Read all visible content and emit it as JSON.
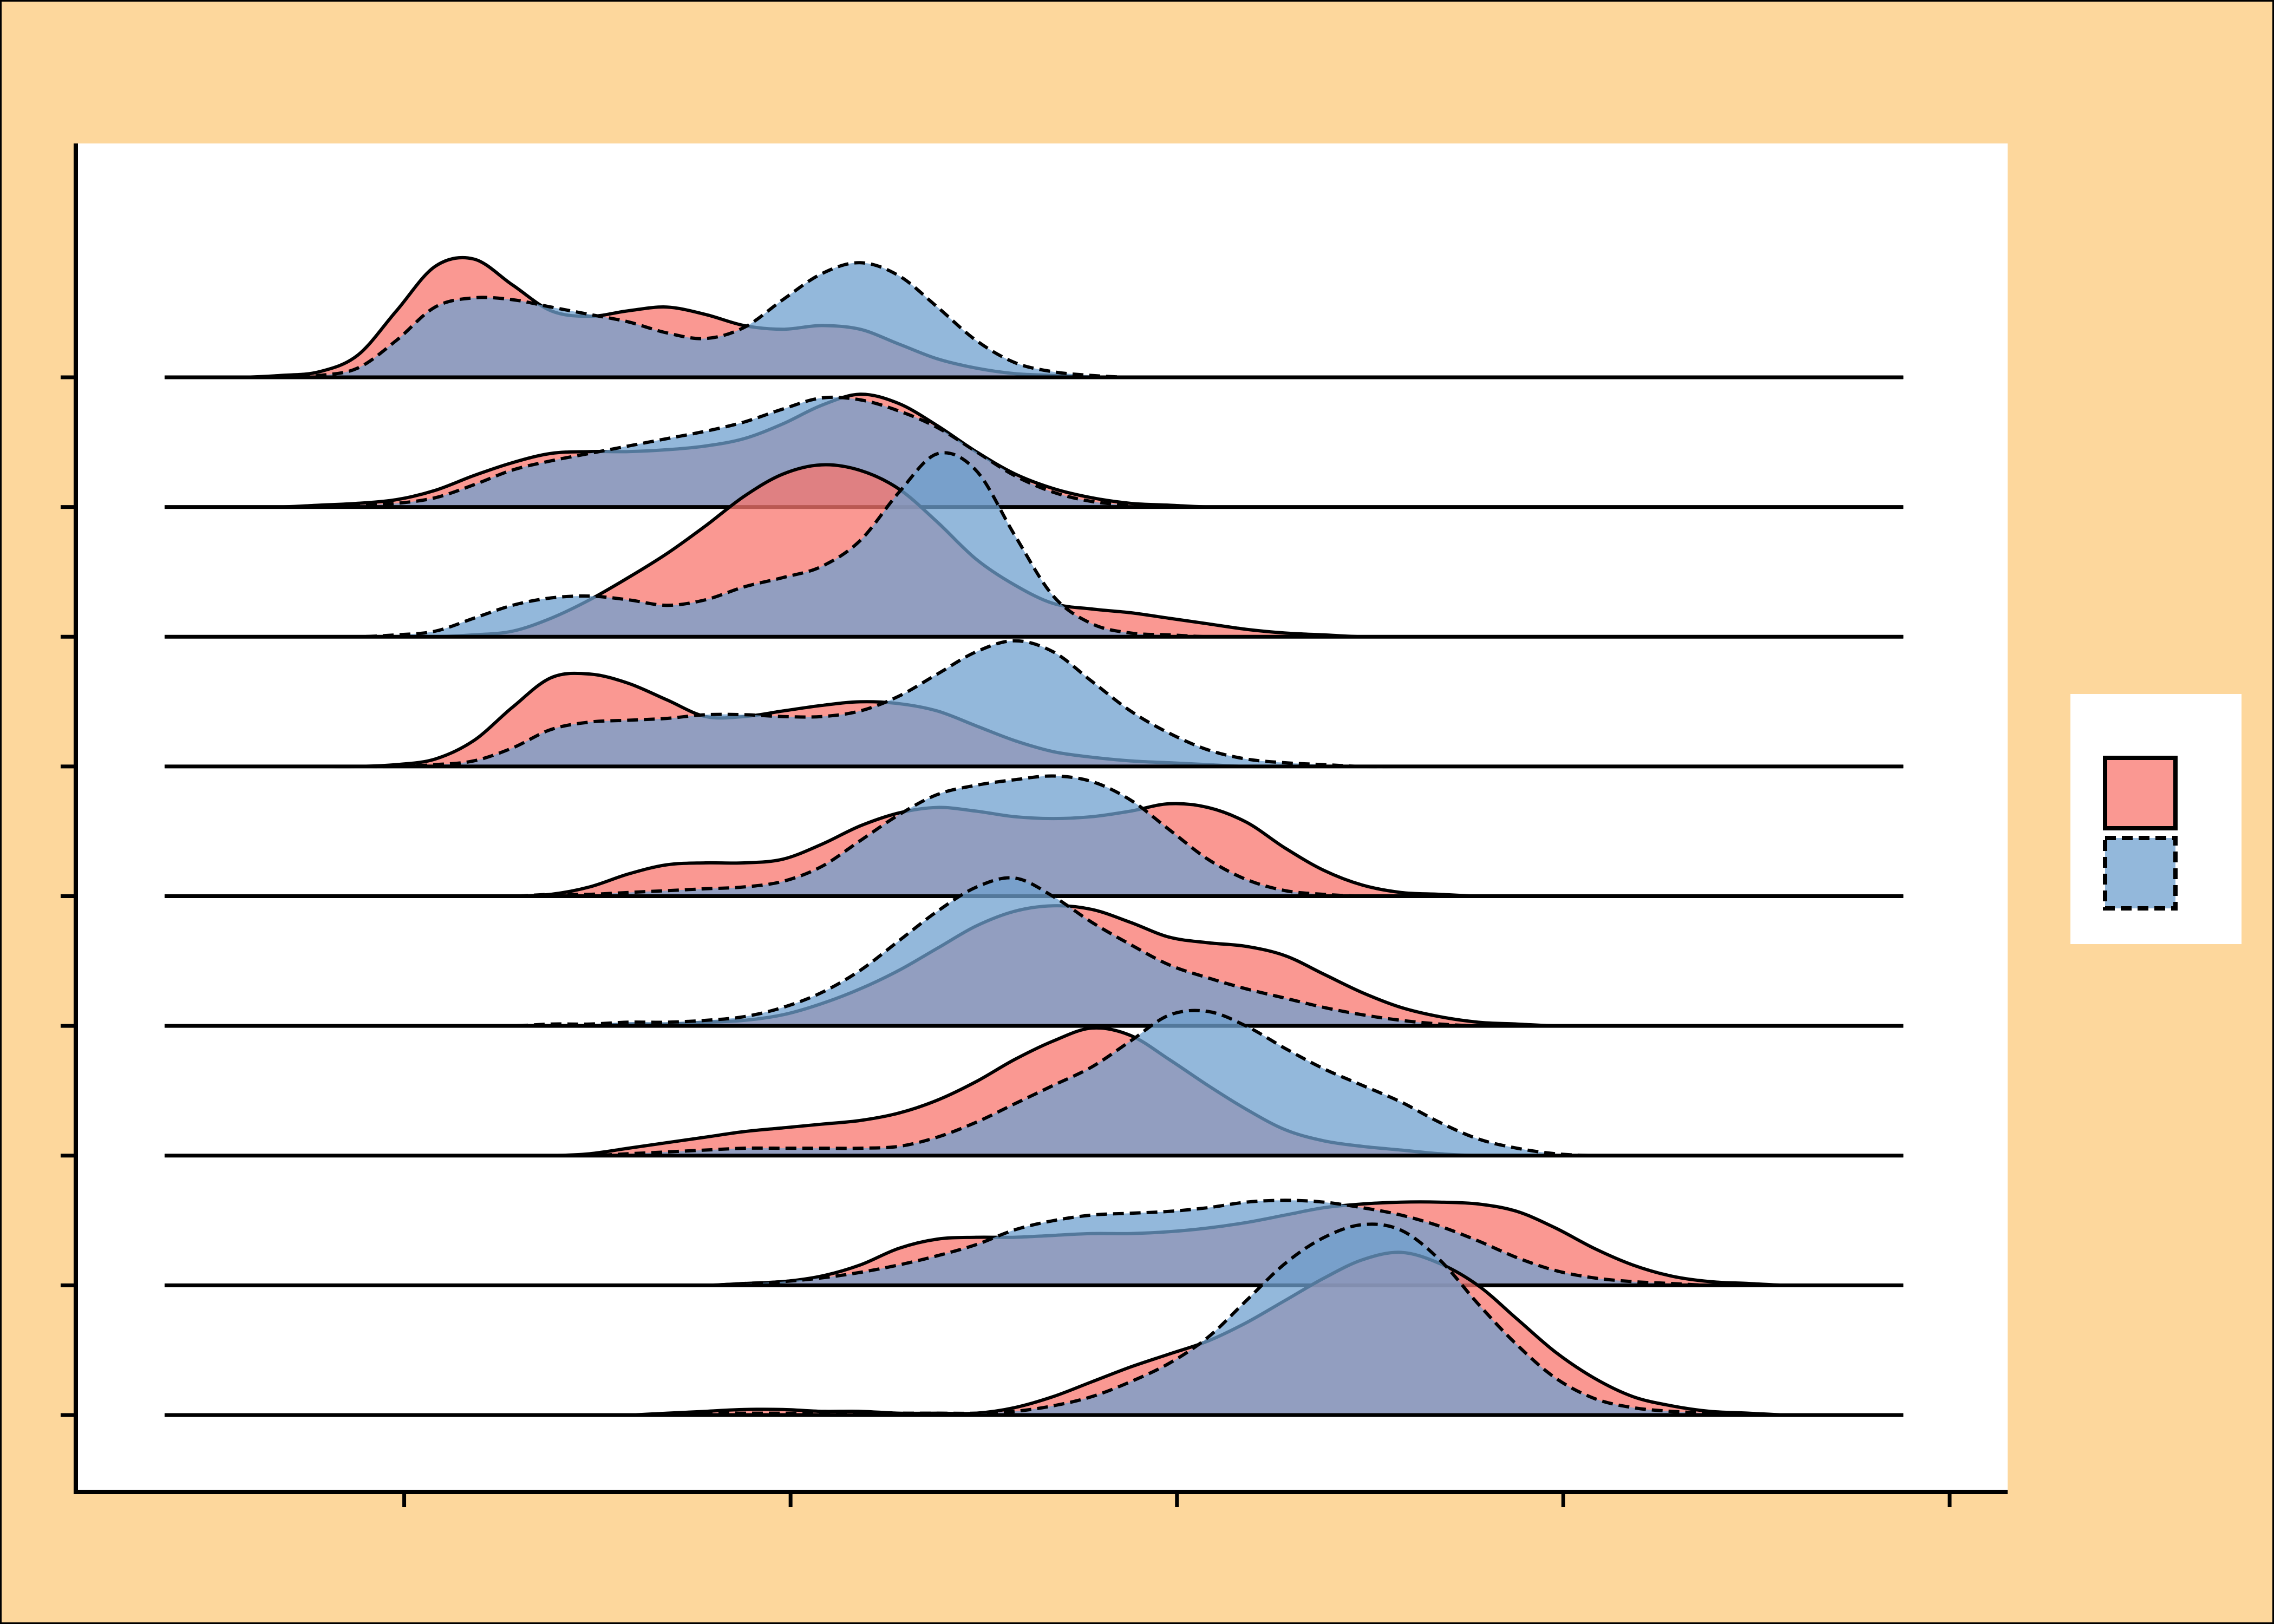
{
  "colors": {
    "page_background": "#fdd79c",
    "panel_background": "#ffffff",
    "series_a_fill": "#f8766d",
    "series_b_fill": "#6fa0cf",
    "line": "#000000"
  },
  "chart_data": {
    "type": "ridgeline",
    "title": "",
    "xlabel": "",
    "ylabel": "",
    "xlim": [
      -0.25,
      4.75
    ],
    "x_ticks": [
      0.6,
      1.6,
      2.6,
      3.6,
      4.6
    ],
    "x_tick_labels": [
      "",
      "",
      "",
      "",
      ""
    ],
    "y_tick_labels": [
      "",
      "",
      "",
      "",
      "",
      "",
      "",
      "",
      ""
    ],
    "scale": 0.57,
    "fill_alpha": 0.75,
    "legend": {
      "position": "right",
      "title": "",
      "entries": [
        {
          "name": "",
          "fill": "series_a",
          "line": "solid"
        },
        {
          "name": "",
          "fill": "series_b",
          "line": "dashed"
        }
      ]
    },
    "x": [
      -0.02,
      0.08,
      0.18,
      0.28,
      0.38,
      0.48,
      0.58,
      0.68,
      0.78,
      0.88,
      0.98,
      1.08,
      1.18,
      1.28,
      1.38,
      1.48,
      1.58,
      1.68,
      1.78,
      1.88,
      1.98,
      2.08,
      2.18,
      2.28,
      2.38,
      2.48,
      2.58,
      2.68,
      2.78,
      2.88,
      2.98,
      3.08,
      3.18,
      3.28,
      3.38,
      3.48,
      3.58,
      3.68,
      3.78,
      3.88,
      3.98,
      4.08,
      4.18,
      4.28,
      4.38,
      4.48
    ],
    "ridges": [
      {
        "label": "",
        "series": [
          {
            "name": "series_a",
            "line": "solid",
            "values": [
              0,
              0,
              0,
              0,
              0,
              0,
              0,
              0,
              0,
              0,
              0,
              0,
              0,
              0.01,
              0.02,
              0.03,
              0.03,
              0.02,
              0.02,
              0.01,
              0.01,
              0.01,
              0.04,
              0.1,
              0.18,
              0.26,
              0.33,
              0.4,
              0.5,
              0.62,
              0.74,
              0.84,
              0.88,
              0.82,
              0.7,
              0.52,
              0.34,
              0.2,
              0.1,
              0.05,
              0.02,
              0.01,
              0,
              0,
              0,
              0
            ]
          },
          {
            "name": "series_b",
            "line": "dashed",
            "values": [
              0,
              0,
              0,
              0,
              0,
              0,
              0,
              0,
              0,
              0,
              0,
              0,
              0,
              0,
              0.01,
              0.01,
              0.01,
              0.01,
              0.01,
              0.01,
              0.01,
              0.01,
              0.02,
              0.05,
              0.1,
              0.18,
              0.28,
              0.42,
              0.62,
              0.82,
              0.96,
              1.03,
              1.0,
              0.84,
              0.6,
              0.38,
              0.2,
              0.09,
              0.04,
              0.02,
              0.01,
              0,
              0,
              0,
              0,
              0
            ]
          }
        ]
      },
      {
        "label": "",
        "series": [
          {
            "name": "series_a",
            "line": "solid",
            "values": [
              0,
              0,
              0,
              0,
              0,
              0,
              0,
              0,
              0,
              0,
              0,
              0,
              0,
              0,
              0,
              0.01,
              0.02,
              0.05,
              0.11,
              0.2,
              0.25,
              0.26,
              0.26,
              0.27,
              0.28,
              0.28,
              0.29,
              0.31,
              0.34,
              0.38,
              0.42,
              0.44,
              0.45,
              0.45,
              0.44,
              0.4,
              0.31,
              0.2,
              0.11,
              0.05,
              0.02,
              0.01,
              0,
              0,
              0,
              0
            ]
          },
          {
            "name": "series_b",
            "line": "dashed",
            "values": [
              0,
              0,
              0,
              0,
              0,
              0,
              0,
              0,
              0,
              0,
              0,
              0,
              0,
              0,
              0,
              0.01,
              0.02,
              0.04,
              0.07,
              0.11,
              0.16,
              0.22,
              0.3,
              0.35,
              0.38,
              0.39,
              0.4,
              0.42,
              0.45,
              0.46,
              0.45,
              0.42,
              0.38,
              0.32,
              0.24,
              0.15,
              0.08,
              0.04,
              0.02,
              0.01,
              0,
              0,
              0,
              0,
              0,
              0
            ]
          }
        ]
      },
      {
        "label": "",
        "series": [
          {
            "name": "series_a",
            "line": "solid",
            "values": [
              0,
              0,
              0,
              0,
              0,
              0,
              0,
              0,
              0,
              0,
              0,
              0.01,
              0.04,
              0.07,
              0.1,
              0.13,
              0.15,
              0.17,
              0.19,
              0.23,
              0.3,
              0.4,
              0.52,
              0.62,
              0.69,
              0.65,
              0.52,
              0.38,
              0.25,
              0.14,
              0.08,
              0.05,
              0.03,
              0.01,
              0,
              0,
              0,
              0,
              0,
              0,
              0,
              0,
              0,
              0,
              0,
              0
            ]
          },
          {
            "name": "series_b",
            "line": "dashed",
            "values": [
              0,
              0,
              0,
              0,
              0,
              0,
              0,
              0,
              0,
              0,
              0,
              0,
              0.01,
              0.02,
              0.03,
              0.04,
              0.04,
              0.04,
              0.04,
              0.05,
              0.1,
              0.18,
              0.28,
              0.38,
              0.48,
              0.62,
              0.76,
              0.78,
              0.7,
              0.58,
              0.47,
              0.38,
              0.29,
              0.18,
              0.09,
              0.04,
              0.01,
              0,
              0,
              0,
              0,
              0,
              0,
              0,
              0,
              0
            ]
          }
        ]
      },
      {
        "label": "",
        "series": [
          {
            "name": "series_a",
            "line": "solid",
            "values": [
              0,
              0,
              0,
              0,
              0,
              0,
              0,
              0,
              0,
              0,
              0,
              0,
              0.01,
              0.01,
              0.02,
              0.03,
              0.06,
              0.12,
              0.2,
              0.3,
              0.42,
              0.54,
              0.62,
              0.65,
              0.63,
              0.56,
              0.48,
              0.45,
              0.43,
              0.38,
              0.28,
              0.18,
              0.1,
              0.05,
              0.02,
              0.01,
              0,
              0,
              0,
              0,
              0,
              0,
              0,
              0,
              0,
              0
            ]
          },
          {
            "name": "series_b",
            "line": "dashed",
            "values": [
              0,
              0,
              0,
              0,
              0,
              0,
              0,
              0,
              0,
              0,
              0.01,
              0.01,
              0.02,
              0.02,
              0.03,
              0.05,
              0.1,
              0.18,
              0.3,
              0.46,
              0.62,
              0.75,
              0.8,
              0.7,
              0.56,
              0.44,
              0.33,
              0.26,
              0.2,
              0.15,
              0.1,
              0.06,
              0.03,
              0.01,
              0,
              0,
              0,
              0,
              0,
              0,
              0,
              0,
              0,
              0,
              0,
              0
            ]
          }
        ]
      },
      {
        "label": "",
        "series": [
          {
            "name": "series_a",
            "line": "solid",
            "values": [
              0,
              0,
              0,
              0,
              0,
              0,
              0,
              0,
              0,
              0,
              0.01,
              0.05,
              0.12,
              0.17,
              0.18,
              0.18,
              0.2,
              0.28,
              0.38,
              0.45,
              0.48,
              0.46,
              0.43,
              0.42,
              0.43,
              0.46,
              0.5,
              0.48,
              0.4,
              0.26,
              0.14,
              0.06,
              0.02,
              0.01,
              0,
              0,
              0,
              0,
              0,
              0,
              0,
              0,
              0,
              0,
              0,
              0
            ]
          },
          {
            "name": "series_b",
            "line": "dashed",
            "values": [
              0,
              0,
              0,
              0,
              0,
              0,
              0,
              0,
              0,
              0,
              0.01,
              0.01,
              0.02,
              0.03,
              0.04,
              0.05,
              0.08,
              0.16,
              0.3,
              0.44,
              0.55,
              0.6,
              0.63,
              0.65,
              0.62,
              0.52,
              0.36,
              0.2,
              0.09,
              0.03,
              0.01,
              0,
              0,
              0,
              0,
              0,
              0,
              0,
              0,
              0,
              0,
              0,
              0,
              0,
              0,
              0
            ]
          }
        ]
      },
      {
        "label": "",
        "series": [
          {
            "name": "series_a",
            "line": "solid",
            "values": [
              0,
              0,
              0,
              0,
              0,
              0,
              0.01,
              0.04,
              0.14,
              0.32,
              0.48,
              0.5,
              0.45,
              0.36,
              0.27,
              0.27,
              0.3,
              0.33,
              0.35,
              0.34,
              0.3,
              0.22,
              0.14,
              0.08,
              0.05,
              0.03,
              0.02,
              0.01,
              0,
              0,
              0,
              0,
              0,
              0,
              0,
              0,
              0,
              0,
              0,
              0,
              0,
              0,
              0,
              0,
              0,
              0
            ]
          },
          {
            "name": "series_b",
            "line": "dashed",
            "values": [
              0,
              0,
              0,
              0,
              0,
              0,
              0,
              0.01,
              0.03,
              0.1,
              0.2,
              0.24,
              0.25,
              0.26,
              0.28,
              0.28,
              0.27,
              0.27,
              0.3,
              0.38,
              0.5,
              0.62,
              0.68,
              0.62,
              0.46,
              0.3,
              0.18,
              0.09,
              0.04,
              0.02,
              0.01,
              0,
              0,
              0,
              0,
              0,
              0,
              0,
              0,
              0,
              0,
              0,
              0,
              0,
              0,
              0
            ]
          }
        ]
      },
      {
        "label": "",
        "series": [
          {
            "name": "series_a",
            "line": "solid",
            "values": [
              0,
              0,
              0,
              0,
              0,
              0,
              0,
              0,
              0.01,
              0.03,
              0.1,
              0.2,
              0.32,
              0.45,
              0.6,
              0.76,
              0.88,
              0.93,
              0.9,
              0.8,
              0.62,
              0.42,
              0.28,
              0.18,
              0.15,
              0.13,
              0.1,
              0.07,
              0.04,
              0.02,
              0.01,
              0,
              0,
              0,
              0,
              0,
              0,
              0,
              0,
              0,
              0,
              0,
              0,
              0,
              0,
              0
            ]
          },
          {
            "name": "series_b",
            "line": "dashed",
            "values": [
              0,
              0,
              0,
              0,
              0,
              0,
              0.01,
              0.03,
              0.1,
              0.17,
              0.21,
              0.22,
              0.2,
              0.17,
              0.2,
              0.27,
              0.32,
              0.38,
              0.52,
              0.78,
              0.99,
              0.9,
              0.55,
              0.22,
              0.07,
              0.02,
              0.01,
              0,
              0,
              0,
              0,
              0,
              0,
              0,
              0,
              0,
              0,
              0,
              0,
              0,
              0,
              0,
              0,
              0,
              0,
              0
            ]
          }
        ]
      },
      {
        "label": "",
        "series": [
          {
            "name": "series_a",
            "line": "solid",
            "values": [
              0,
              0,
              0,
              0,
              0.01,
              0.02,
              0.04,
              0.09,
              0.17,
              0.24,
              0.29,
              0.3,
              0.3,
              0.31,
              0.33,
              0.37,
              0.45,
              0.55,
              0.61,
              0.56,
              0.44,
              0.3,
              0.18,
              0.1,
              0.05,
              0.02,
              0.01,
              0,
              0,
              0,
              0,
              0,
              0,
              0,
              0,
              0,
              0,
              0,
              0,
              0,
              0,
              0,
              0,
              0,
              0,
              0
            ]
          },
          {
            "name": "series_b",
            "line": "dashed",
            "values": [
              0,
              0,
              0,
              0,
              0,
              0.01,
              0.02,
              0.05,
              0.12,
              0.2,
              0.25,
              0.29,
              0.33,
              0.37,
              0.41,
              0.46,
              0.53,
              0.59,
              0.58,
              0.52,
              0.43,
              0.3,
              0.17,
              0.08,
              0.03,
              0.01,
              0,
              0,
              0,
              0,
              0,
              0,
              0,
              0,
              0,
              0,
              0,
              0,
              0,
              0,
              0,
              0,
              0,
              0,
              0,
              0
            ]
          }
        ]
      },
      {
        "label": "",
        "series": [
          {
            "name": "series_a",
            "line": "solid",
            "values": [
              0,
              0,
              0,
              0.01,
              0.03,
              0.12,
              0.36,
              0.6,
              0.64,
              0.5,
              0.36,
              0.33,
              0.36,
              0.38,
              0.34,
              0.28,
              0.26,
              0.28,
              0.26,
              0.18,
              0.1,
              0.05,
              0.02,
              0.01,
              0,
              0,
              0,
              0,
              0,
              0,
              0,
              0,
              0,
              0,
              0,
              0,
              0,
              0,
              0,
              0,
              0,
              0,
              0,
              0,
              0,
              0
            ]
          },
          {
            "name": "series_b",
            "line": "dashed",
            "values": [
              0,
              0,
              0,
              0,
              0.01,
              0.05,
              0.2,
              0.38,
              0.43,
              0.42,
              0.38,
              0.34,
              0.3,
              0.24,
              0.21,
              0.27,
              0.42,
              0.56,
              0.62,
              0.55,
              0.38,
              0.2,
              0.08,
              0.03,
              0.01,
              0,
              0,
              0,
              0,
              0,
              0,
              0,
              0,
              0,
              0,
              0,
              0,
              0,
              0,
              0,
              0,
              0,
              0,
              0,
              0,
              0
            ]
          }
        ]
      }
    ]
  }
}
